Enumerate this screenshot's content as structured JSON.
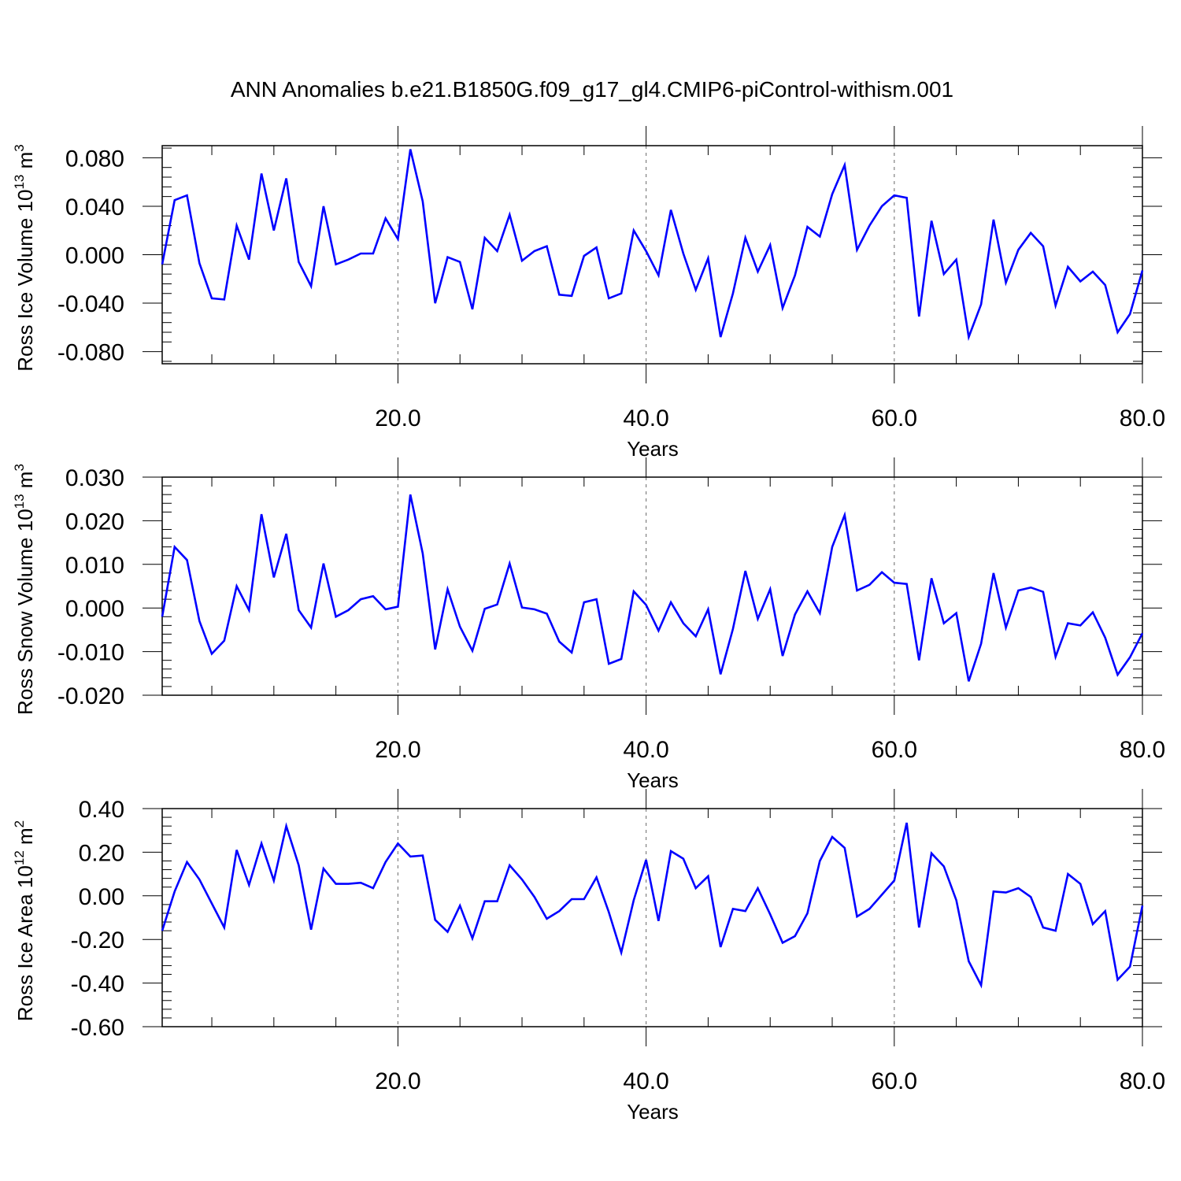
{
  "figure": {
    "title": "ANN Anomalies b.e21.B1850G.f09_g17_gl4.CMIP6-piControl-withism.001",
    "line_color": "#0000ff",
    "grid_color": "#808080"
  },
  "chart_data": [
    {
      "type": "line",
      "title": "ANN Anomalies b.e21.B1850G.f09_g17_gl4.CMIP6-piControl-withism.001",
      "xlabel": "Years",
      "ylabel": {
        "text": "Ross Ice Volume 10",
        "exp": "13",
        "unit": "m",
        "unit_exp": "3"
      },
      "xlim": [
        1,
        80
      ],
      "ylim": [
        -0.09,
        0.09
      ],
      "xticks": [
        20,
        40,
        60,
        80
      ],
      "xtick_labels": [
        "20.0",
        "40.0",
        "60.0",
        "80.0"
      ],
      "yticks": [
        0.08,
        0.04,
        0.0,
        -0.04,
        -0.08
      ],
      "ytick_labels": [
        "0.080",
        "0.040",
        "0.000",
        "-0.040",
        "-0.080"
      ],
      "grid": "vertical dashed at 20, 40, 60",
      "series": [
        {
          "x": [
            1,
            2,
            3,
            4,
            5,
            6,
            7,
            8,
            9,
            10,
            11,
            12,
            13,
            14,
            15,
            16,
            17,
            18,
            19,
            20,
            21,
            22,
            23,
            24,
            25,
            26,
            27,
            28,
            29,
            30,
            31,
            32,
            33,
            34,
            35,
            36,
            37,
            38,
            39,
            40,
            41,
            42,
            43,
            44,
            45,
            46,
            47,
            48,
            49,
            50,
            51,
            52,
            53,
            54,
            55,
            56,
            57,
            58,
            59,
            60,
            61,
            62,
            63,
            64,
            65,
            66,
            67,
            68,
            69,
            70,
            71,
            72,
            73,
            74,
            75,
            76,
            77,
            78,
            79,
            80
          ],
          "values": [
            -0.008,
            0.045,
            0.049,
            -0.007,
            -0.036,
            -0.037,
            0.024,
            -0.004,
            0.067,
            0.02,
            0.063,
            -0.006,
            -0.026,
            0.04,
            -0.008,
            -0.004,
            0.001,
            0.001,
            0.03,
            0.013,
            0.087,
            0.044,
            -0.04,
            -0.002,
            -0.006,
            -0.045,
            0.014,
            0.003,
            0.033,
            -0.005,
            0.003,
            0.007,
            -0.033,
            -0.034,
            -0.001,
            0.006,
            -0.036,
            -0.032,
            0.02,
            0.003,
            -0.017,
            0.037,
            0.001,
            -0.029,
            -0.003,
            -0.068,
            -0.032,
            0.014,
            -0.014,
            0.008,
            -0.044,
            -0.017,
            0.023,
            0.015,
            0.05,
            0.074,
            0.004,
            0.024,
            0.04,
            0.049,
            0.047,
            -0.051,
            0.028,
            -0.016,
            -0.004,
            -0.068,
            -0.041,
            0.029,
            -0.023,
            0.004,
            0.018,
            0.007,
            -0.042,
            -0.01,
            -0.022,
            -0.014,
            -0.025,
            -0.064,
            -0.049,
            -0.013
          ]
        }
      ]
    },
    {
      "type": "line",
      "xlabel": "Years",
      "ylabel": {
        "text": "Ross Snow Volume 10",
        "exp": "13",
        "unit": "m",
        "unit_exp": "3"
      },
      "xlim": [
        1,
        80
      ],
      "ylim": [
        -0.02,
        0.03
      ],
      "xticks": [
        20,
        40,
        60,
        80
      ],
      "xtick_labels": [
        "20.0",
        "40.0",
        "60.0",
        "80.0"
      ],
      "yticks": [
        0.03,
        0.02,
        0.01,
        0.0,
        -0.01,
        -0.02
      ],
      "ytick_labels": [
        "0.030",
        "0.020",
        "0.010",
        "0.000",
        "-0.010",
        "-0.020"
      ],
      "grid": "vertical dashed at 20, 40, 60",
      "series": [
        {
          "x": [
            1,
            2,
            3,
            4,
            5,
            6,
            7,
            8,
            9,
            10,
            11,
            12,
            13,
            14,
            15,
            16,
            17,
            18,
            19,
            20,
            21,
            22,
            23,
            24,
            25,
            26,
            27,
            28,
            29,
            30,
            31,
            32,
            33,
            34,
            35,
            36,
            37,
            38,
            39,
            40,
            41,
            42,
            43,
            44,
            45,
            46,
            47,
            48,
            49,
            50,
            51,
            52,
            53,
            54,
            55,
            56,
            57,
            58,
            59,
            60,
            61,
            62,
            63,
            64,
            65,
            66,
            67,
            68,
            69,
            70,
            71,
            72,
            73,
            74,
            75,
            76,
            77,
            78,
            79,
            80
          ],
          "values": [
            -0.002,
            0.014,
            0.011,
            -0.003,
            -0.0105,
            -0.0075,
            0.005,
            -0.0005,
            0.0215,
            0.007,
            0.017,
            -0.0005,
            -0.0045,
            0.0102,
            -0.002,
            -0.0005,
            0.002,
            0.0027,
            -0.0003,
            0.0003,
            0.026,
            0.0125,
            -0.0095,
            0.0043,
            -0.0043,
            -0.0098,
            -0.0002,
            0.0008,
            0.0102,
            0.0001,
            -0.0003,
            -0.0013,
            -0.0077,
            -0.0102,
            0.0013,
            0.002,
            -0.0128,
            -0.0117,
            0.0038,
            0.0007,
            -0.0052,
            0.0013,
            -0.0035,
            -0.0065,
            -0.0003,
            -0.0152,
            -0.0048,
            0.0085,
            -0.0025,
            0.0043,
            -0.011,
            -0.0015,
            0.0038,
            -0.0012,
            0.014,
            0.0213,
            0.004,
            0.0053,
            0.0082,
            0.0058,
            0.0055,
            -0.012,
            0.0068,
            -0.0035,
            -0.0012,
            -0.0168,
            -0.0082,
            0.008,
            -0.0045,
            0.004,
            0.0047,
            0.0037,
            -0.0112,
            -0.0035,
            -0.004,
            -0.001,
            -0.0068,
            -0.0153,
            -0.0113,
            -0.0058
          ]
        }
      ]
    },
    {
      "type": "line",
      "xlabel": "Years",
      "ylabel": {
        "text": "Ross Ice Area 10",
        "exp": "12",
        "unit": "m",
        "unit_exp": "2"
      },
      "xlim": [
        1,
        80
      ],
      "ylim": [
        -0.6,
        0.4
      ],
      "xticks": [
        20,
        40,
        60,
        80
      ],
      "xtick_labels": [
        "20.0",
        "40.0",
        "60.0",
        "80.0"
      ],
      "yticks": [
        0.4,
        0.2,
        0.0,
        -0.2,
        -0.4,
        -0.6
      ],
      "ytick_labels": [
        "0.40",
        "0.20",
        "0.00",
        "-0.20",
        "-0.40",
        "-0.60"
      ],
      "grid": "vertical dashed at 20, 40, 60",
      "series": [
        {
          "x": [
            1,
            2,
            3,
            4,
            5,
            6,
            7,
            8,
            9,
            10,
            11,
            12,
            13,
            14,
            15,
            16,
            17,
            18,
            19,
            20,
            21,
            22,
            23,
            24,
            25,
            26,
            27,
            28,
            29,
            30,
            31,
            32,
            33,
            34,
            35,
            36,
            37,
            38,
            39,
            40,
            41,
            42,
            43,
            44,
            45,
            46,
            47,
            48,
            49,
            50,
            51,
            52,
            53,
            54,
            55,
            56,
            57,
            58,
            59,
            60,
            61,
            62,
            63,
            64,
            65,
            66,
            67,
            68,
            69,
            70,
            71,
            72,
            73,
            74,
            75,
            76,
            77,
            78,
            79,
            80
          ],
          "values": [
            -0.16,
            0.02,
            0.155,
            0.075,
            -0.035,
            -0.145,
            0.21,
            0.05,
            0.24,
            0.07,
            0.32,
            0.14,
            -0.155,
            0.125,
            0.055,
            0.055,
            0.06,
            0.035,
            0.155,
            0.24,
            0.18,
            0.185,
            -0.11,
            -0.165,
            -0.045,
            -0.195,
            -0.025,
            -0.025,
            0.14,
            0.075,
            -0.005,
            -0.105,
            -0.07,
            -0.015,
            -0.015,
            0.085,
            -0.075,
            -0.26,
            -0.02,
            0.165,
            -0.115,
            0.205,
            0.17,
            0.035,
            0.09,
            -0.235,
            -0.06,
            -0.07,
            0.035,
            -0.085,
            -0.215,
            -0.185,
            -0.08,
            0.16,
            0.27,
            0.22,
            -0.095,
            -0.06,
            0.005,
            0.07,
            0.335,
            -0.145,
            0.195,
            0.135,
            -0.02,
            -0.3,
            -0.41,
            0.02,
            0.015,
            0.035,
            -0.005,
            -0.145,
            -0.16,
            0.1,
            0.055,
            -0.13,
            -0.07,
            -0.385,
            -0.325,
            -0.045
          ]
        }
      ]
    }
  ]
}
